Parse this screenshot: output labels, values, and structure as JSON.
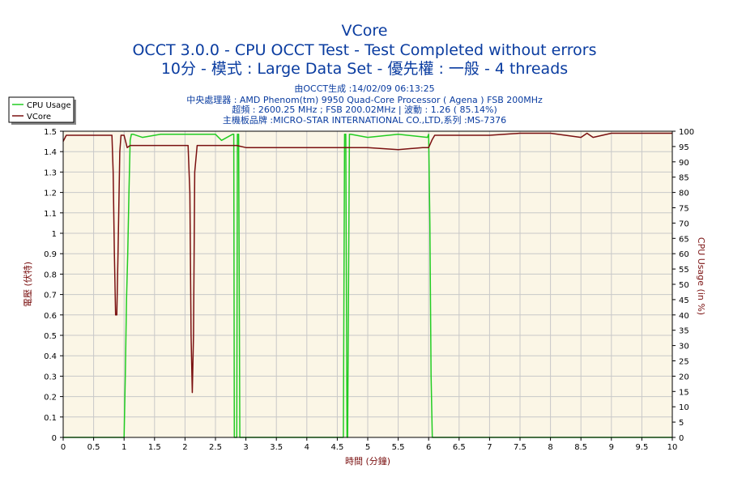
{
  "header": {
    "title_line1": "VCore",
    "title_line2": "OCCT 3.0.0 - CPU OCCT Test - Test Completed without errors",
    "title_line3": "10分 - 模式 : Large Data Set - 優先權 : 一般 - 4 threads",
    "info_line1": "由OCCT生成 :14/02/09 06:13:25",
    "info_line2": "中央處理器 : AMD Phenom(tm) 9950 Quad-Core Processor ( Agena ) FSB 200MHz",
    "info_line3": "超頻 : 2600.25 MHz ; FSB 200.02MHz | 波動 : 1.26 ( 85.14%)",
    "info_line4": "主機板品牌 :MICRO-STAR INTERNATIONAL CO.,LTD,系列 :MS-7376"
  },
  "colors": {
    "cpu_usage": "#22cc22",
    "vcore": "#7a1010",
    "plot_bg": "#fbf6e6",
    "grid": "#c8c8c8",
    "title": "#0a3ca0"
  },
  "chart_data": {
    "type": "line",
    "xlabel": "時間 (分鐘)",
    "ylabel_left": "電壓 (伏特)",
    "ylabel_right": "CPU Usage (in %)",
    "xlim": [
      0,
      10
    ],
    "ylim_left": [
      0,
      1.5
    ],
    "ylim_right": [
      0,
      100
    ],
    "x_ticks": [
      "0",
      "0.5",
      "1",
      "1.5",
      "2",
      "2.5",
      "3",
      "3.5",
      "4",
      "4.5",
      "5",
      "5.5",
      "6",
      "6.5",
      "7",
      "7.5",
      "8",
      "8.5",
      "9",
      "9.5",
      "10"
    ],
    "y_left_ticks": [
      "0",
      "0.1",
      "0.2",
      "0.3",
      "0.4",
      "0.5",
      "0.6",
      "0.7",
      "0.8",
      "0.9",
      "1",
      "1.1",
      "1.2",
      "1.3",
      "1.4",
      "1.5"
    ],
    "y_right_ticks": [
      "0",
      "5",
      "10",
      "15",
      "20",
      "25",
      "30",
      "35",
      "40",
      "45",
      "50",
      "55",
      "60",
      "65",
      "70",
      "75",
      "80",
      "85",
      "90",
      "95",
      "100"
    ],
    "grid": true,
    "legend_position": "top-left",
    "series": [
      {
        "name": "CPU Usage",
        "axis": "right",
        "x": [
          0,
          1.0,
          1.02,
          1.04,
          1.06,
          1.08,
          1.1,
          1.12,
          1.15,
          1.3,
          1.6,
          2.0,
          2.5,
          2.6,
          2.78,
          2.8,
          2.81,
          2.85,
          2.86,
          2.88,
          2.9,
          3.0,
          3.5,
          4.0,
          4.6,
          4.62,
          4.64,
          4.66,
          4.67,
          4.7,
          4.72,
          5.0,
          5.5,
          5.98,
          6.0,
          6.02,
          6.04,
          6.06,
          10
        ],
        "values": [
          0,
          0,
          20,
          45,
          60,
          80,
          97,
          99,
          99,
          98,
          99,
          99,
          99,
          97,
          99,
          99,
          0,
          0,
          99,
          99,
          0,
          0,
          0,
          0,
          0,
          99,
          99,
          0,
          0,
          99,
          99,
          98,
          99,
          98,
          99,
          70,
          20,
          0,
          0
        ]
      },
      {
        "name": "VCore",
        "axis": "left",
        "x": [
          0,
          0.05,
          0.8,
          0.82,
          0.84,
          0.86,
          0.88,
          0.9,
          0.93,
          0.95,
          1.0,
          1.05,
          1.1,
          1.2,
          1.5,
          1.9,
          2.05,
          2.08,
          2.1,
          2.12,
          2.14,
          2.16,
          2.2,
          2.5,
          2.85,
          3.0,
          4.0,
          5.0,
          5.5,
          5.9,
          6.0,
          6.06,
          6.1,
          7.0,
          7.5,
          8.0,
          8.5,
          8.6,
          8.7,
          9.0,
          10
        ],
        "values": [
          1.45,
          1.48,
          1.48,
          1.3,
          0.9,
          0.6,
          0.6,
          0.9,
          1.4,
          1.48,
          1.48,
          1.42,
          1.43,
          1.43,
          1.43,
          1.43,
          1.43,
          1.2,
          0.5,
          0.22,
          0.5,
          1.3,
          1.43,
          1.43,
          1.43,
          1.42,
          1.42,
          1.42,
          1.41,
          1.42,
          1.42,
          1.46,
          1.48,
          1.48,
          1.49,
          1.49,
          1.47,
          1.49,
          1.47,
          1.49,
          1.49
        ]
      }
    ]
  }
}
